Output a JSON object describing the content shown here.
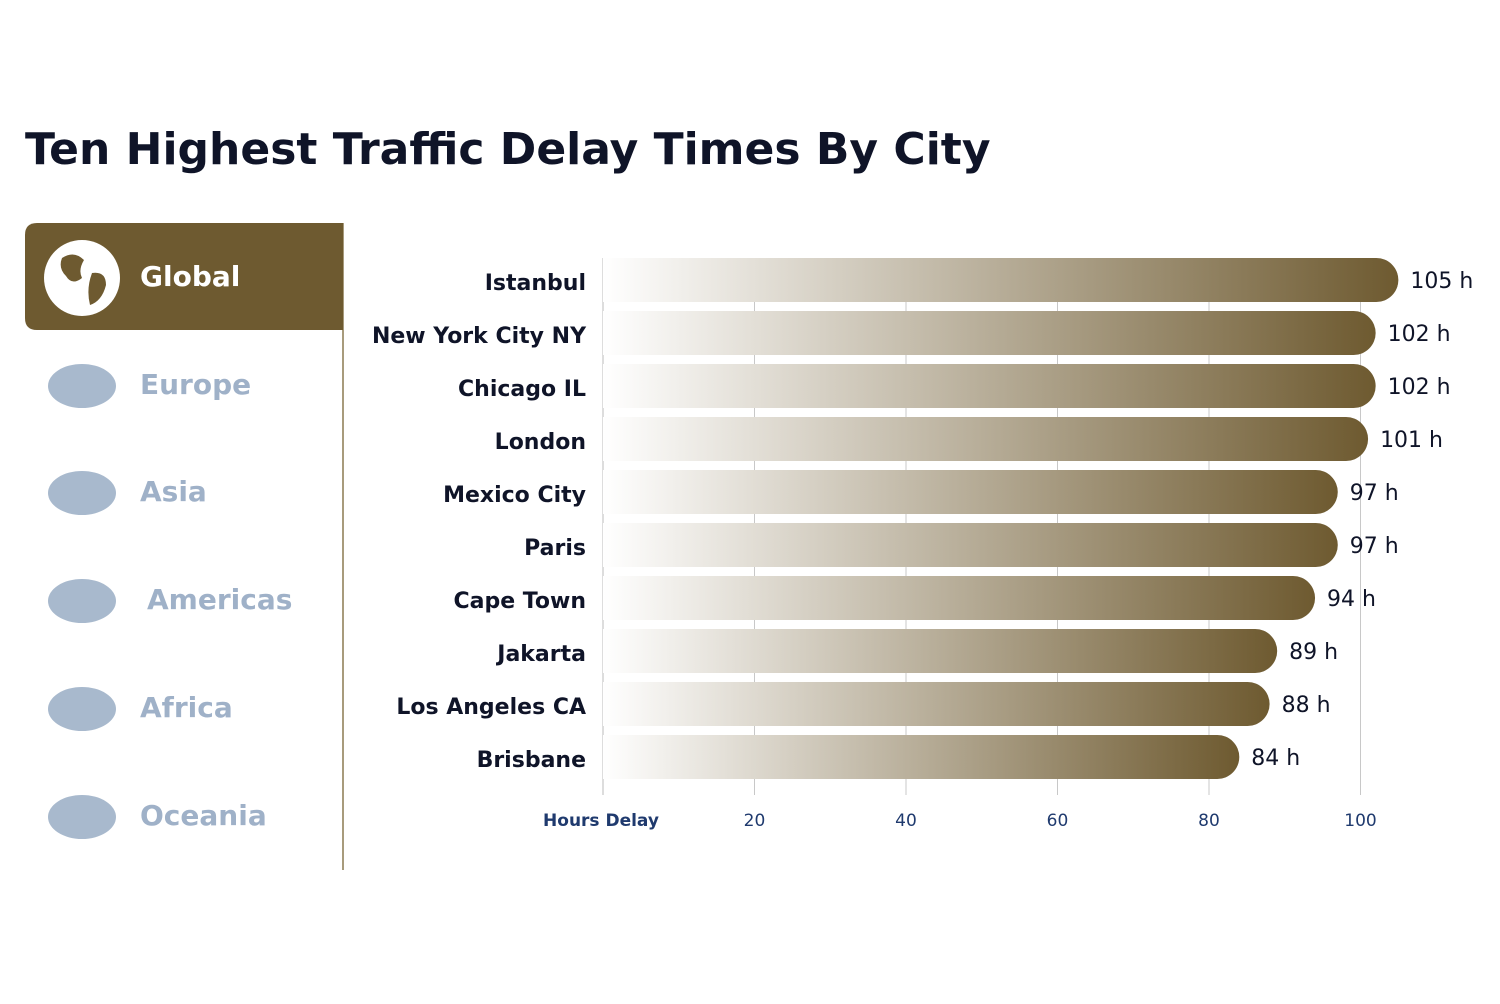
{
  "chart_data": {
    "type": "bar",
    "orientation": "horizontal",
    "title": "Ten Highest Traffic Delay Times By City",
    "categories": [
      "Istanbul",
      "New York City NY",
      "Chicago IL",
      "London",
      "Mexico City",
      "Paris",
      "Cape Town",
      "Jakarta",
      "Los Angeles CA",
      "Brisbane"
    ],
    "values": [
      105,
      102,
      102,
      101,
      97,
      97,
      94,
      89,
      88,
      84
    ],
    "value_labels": [
      "105 h",
      "102 h",
      "102 h",
      "101 h",
      "97 h",
      "97 h",
      "94 h",
      "89 h",
      "88 h",
      "84 h"
    ],
    "color": "#6e5a30",
    "xlabel": "Hours Delay",
    "xlim": [
      0,
      120
    ],
    "xticks": [
      20,
      40,
      60,
      80,
      100
    ],
    "grid": true
  },
  "regions": [
    "Global",
    "Europe",
    "Asia",
    "Americas",
    "Africa",
    "Oceania"
  ]
}
